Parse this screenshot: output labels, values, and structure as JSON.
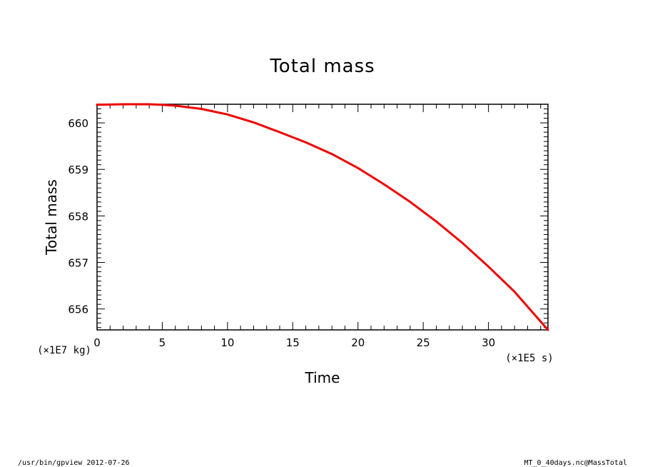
{
  "chart_data": {
    "type": "line",
    "title": "Total mass",
    "xlabel": "Time",
    "ylabel": "Total mass",
    "x_unit": "(×1E5 s)",
    "y_unit": "(×1E7 kg)",
    "xlim": [
      0,
      34.56
    ],
    "ylim": [
      655.55,
      660.4
    ],
    "x_ticks": [
      0,
      5,
      10,
      15,
      20,
      25,
      30
    ],
    "x_tick_labels": [
      "0",
      "5",
      "10",
      "15",
      "20",
      "25",
      "30"
    ],
    "y_ticks": [
      656,
      657,
      658,
      659,
      660
    ],
    "y_tick_labels": [
      "656",
      "657",
      "658",
      "659",
      "660"
    ],
    "grid": false,
    "series": [
      {
        "color": "#ee0000",
        "x": [
          0,
          2,
          4,
          5,
          6,
          8,
          10,
          12,
          14,
          16,
          18,
          20,
          22,
          24,
          26,
          28,
          30,
          32,
          34.56
        ],
        "y": [
          660.39,
          660.4,
          660.4,
          660.39,
          660.37,
          660.3,
          660.18,
          660.01,
          659.8,
          659.58,
          659.33,
          659.03,
          658.68,
          658.3,
          657.88,
          657.42,
          656.91,
          656.37,
          655.55
        ]
      }
    ]
  },
  "footer": {
    "left": "/usr/bin/gpview  2012-07-26",
    "right": "MT_0_40days.nc@MassTotal"
  }
}
